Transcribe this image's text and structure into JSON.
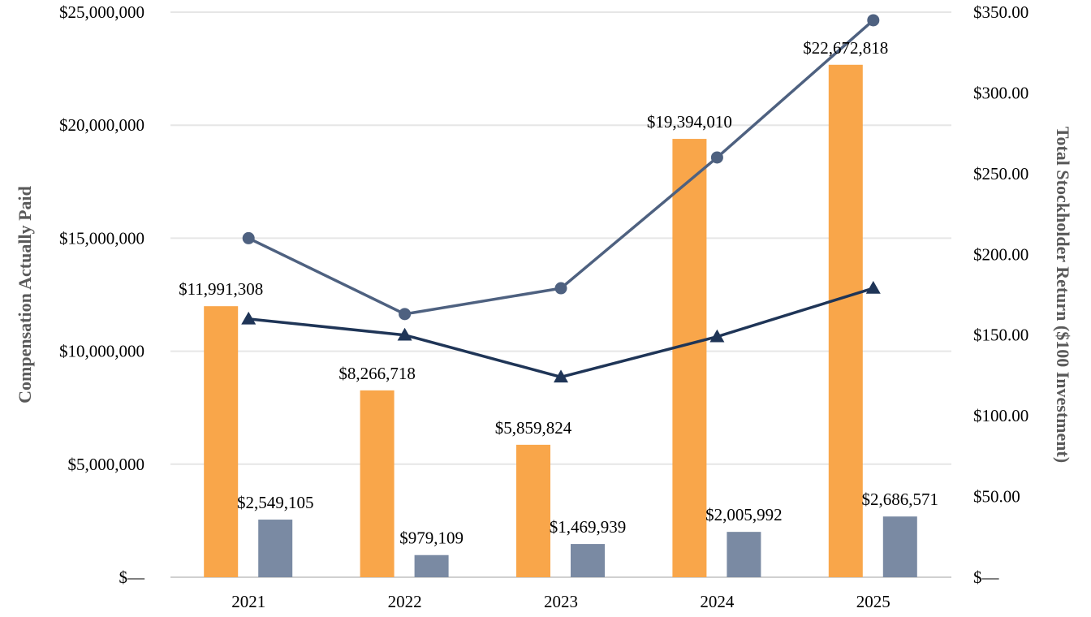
{
  "chart_data": {
    "type": "bar",
    "categories": [
      "2021",
      "2022",
      "2023",
      "2024",
      "2025"
    ],
    "ylabel": "Compensation Actually Paid",
    "y2label": "Total Stockholder Return ($100 Investment)",
    "ylim": [
      0,
      25000000
    ],
    "y2lim": [
      0,
      350
    ],
    "y_ticks": [
      "$—",
      "$5,000,000",
      "$10,000,000",
      "$15,000,000",
      "$20,000,000",
      "$25,000,000"
    ],
    "y2_ticks": [
      "$—",
      "$50.00",
      "$100.00",
      "$150.00",
      "$200.00",
      "$250.00",
      "$300.00",
      "$350.00"
    ],
    "grid": true,
    "series": [
      {
        "type": "bar",
        "axis": "left",
        "color": "#F9A64A",
        "values": [
          11991308,
          8266718,
          5859824,
          19394010,
          22672818
        ],
        "labels": [
          "$11,991,308",
          "$8,266,718",
          "$5,859,824",
          "$19,394,010",
          "$22,672,818"
        ]
      },
      {
        "type": "bar",
        "axis": "left",
        "color": "#7A8AA3",
        "values": [
          2549105,
          979109,
          1469939,
          2005992,
          2686571
        ],
        "labels": [
          "$2,549,105",
          "$979,109",
          "$1,469,939",
          "$2,005,992",
          "$2,686,571"
        ]
      },
      {
        "type": "line",
        "axis": "right",
        "color": "#4E6180",
        "marker": "circle",
        "values": [
          210,
          163,
          179,
          260,
          345
        ]
      },
      {
        "type": "line",
        "axis": "right",
        "color": "#1F3557",
        "marker": "triangle",
        "values": [
          160,
          150,
          124,
          149,
          179
        ]
      }
    ]
  }
}
